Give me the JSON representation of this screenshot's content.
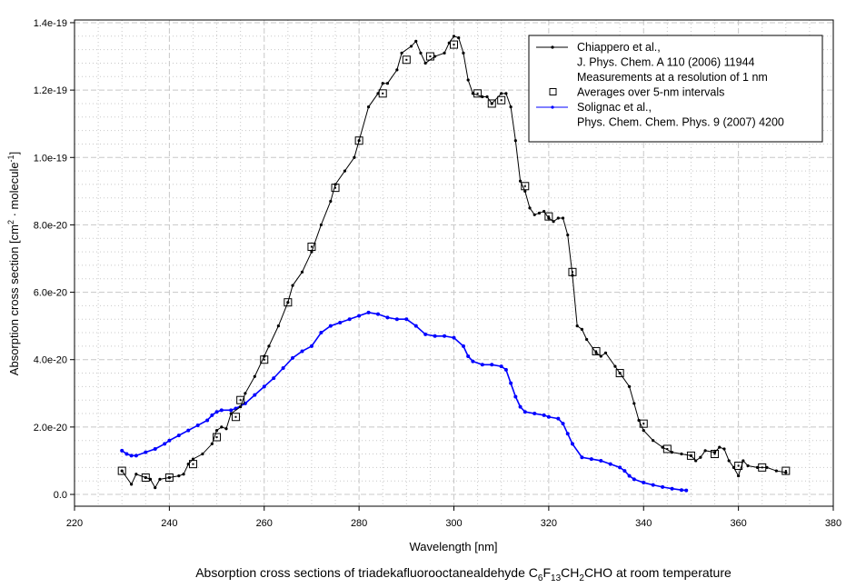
{
  "chart_data": {
    "type": "line",
    "xlabel": "Wavelength [nm]",
    "ylabel_main": "Absorption cross section [cm",
    "ylabel_sup1": "2",
    "ylabel_mid": " · molecule",
    "ylabel_sup2": "-1",
    "ylabel_end": "]",
    "caption": {
      "pre": "Absorption cross sections of triadekafluorooctanealdehyde C",
      "s1": "6",
      "f": "F",
      "s2": "13",
      "ch": "CH",
      "s3": "2",
      "post": "CHO at room temperature"
    },
    "y_unit_scale": 1e-20,
    "xlim": [
      220,
      380
    ],
    "ylim": [
      -0.35,
      14.08
    ],
    "grid": true,
    "legend_placement": "top-right",
    "x_ticks": [
      {
        "v": 220,
        "label": "220"
      },
      {
        "v": 240,
        "label": "240"
      },
      {
        "v": 260,
        "label": "260"
      },
      {
        "v": 280,
        "label": "280"
      },
      {
        "v": 300,
        "label": "300"
      },
      {
        "v": 320,
        "label": "320"
      },
      {
        "v": 340,
        "label": "340"
      },
      {
        "v": 360,
        "label": "360"
      },
      {
        "v": 380,
        "label": "380"
      }
    ],
    "y_ticks": [
      {
        "v": 0,
        "label": "0.0"
      },
      {
        "v": 2,
        "label": "2.0e-20"
      },
      {
        "v": 4,
        "label": "4.0e-20"
      },
      {
        "v": 6,
        "label": "6.0e-20"
      },
      {
        "v": 8,
        "label": "8.0e-20"
      },
      {
        "v": 10,
        "label": "1.0e-19"
      },
      {
        "v": 12,
        "label": "1.2e-19"
      },
      {
        "v": 14,
        "label": "1.4e-19"
      }
    ],
    "legend": [
      {
        "lines": [
          "Chiappero et al.,",
          "J. Phys. Chem. A 110 (2006) 11944",
          "Measurements at a resolution of 1 nm"
        ]
      },
      {
        "lines": [
          "Averages over 5-nm intervals"
        ]
      },
      {
        "lines": [
          "Solignac et al.,",
          "Phys. Chem. Chem. Phys. 9 (2007) 4200"
        ]
      }
    ],
    "series": [
      {
        "name": "Chiappero et al. (1 nm)",
        "color": "#000000",
        "x": [
          230,
          232,
          233,
          235,
          236,
          237,
          238,
          240,
          242,
          243,
          244,
          245,
          247,
          249,
          250,
          251,
          252,
          253,
          255,
          256,
          258,
          260,
          261,
          263,
          265,
          266,
          268,
          270,
          272,
          274,
          275,
          277,
          279,
          280,
          282,
          284,
          285,
          286,
          288,
          289,
          291,
          292,
          293,
          294,
          296,
          298,
          299,
          300,
          301,
          302,
          303,
          304,
          306,
          307,
          308,
          310,
          311,
          312,
          313,
          314,
          315,
          316,
          317,
          318,
          319,
          320,
          321,
          322,
          323,
          324,
          325,
          326,
          327,
          328,
          330,
          331,
          332,
          334,
          335,
          337,
          338,
          339,
          340,
          342,
          344,
          346,
          348,
          350,
          351,
          352,
          353,
          355,
          356,
          357,
          358,
          359,
          360,
          361,
          362,
          364,
          366,
          368,
          370
        ],
        "y": [
          0.7,
          0.3,
          0.6,
          0.5,
          0.45,
          0.2,
          0.45,
          0.5,
          0.55,
          0.6,
          0.9,
          1.05,
          1.2,
          1.5,
          1.9,
          2.0,
          1.95,
          2.4,
          2.6,
          3.0,
          3.5,
          4.1,
          4.4,
          5.0,
          5.7,
          6.2,
          6.6,
          7.2,
          8.0,
          8.7,
          9.2,
          9.6,
          10.0,
          10.5,
          11.5,
          11.9,
          12.2,
          12.2,
          12.6,
          13.1,
          13.3,
          13.45,
          13.1,
          12.8,
          13.0,
          13.1,
          13.4,
          13.6,
          13.55,
          13.1,
          12.3,
          11.9,
          11.8,
          11.8,
          11.6,
          11.9,
          11.9,
          11.5,
          10.5,
          9.3,
          9.0,
          8.5,
          8.3,
          8.35,
          8.4,
          8.2,
          8.1,
          8.2,
          8.2,
          7.7,
          6.5,
          5.0,
          4.9,
          4.6,
          4.2,
          4.1,
          4.2,
          3.8,
          3.6,
          3.2,
          2.7,
          2.2,
          1.9,
          1.6,
          1.4,
          1.25,
          1.2,
          1.15,
          1.0,
          1.1,
          1.3,
          1.25,
          1.4,
          1.35,
          1.0,
          0.8,
          0.55,
          1.0,
          0.85,
          0.8,
          0.8,
          0.7,
          0.65
        ]
      },
      {
        "name": "Averages over 5-nm intervals",
        "color": "#000000",
        "marker": "square",
        "x": [
          230,
          235,
          240,
          245,
          250,
          254,
          255,
          260,
          265,
          270,
          275,
          280,
          285,
          290,
          295,
          300,
          305,
          308,
          310,
          315,
          320,
          325,
          330,
          335,
          340,
          345,
          350,
          355,
          360,
          365,
          370
        ],
        "y": [
          0.7,
          0.5,
          0.5,
          0.9,
          1.7,
          2.3,
          2.8,
          4.0,
          5.7,
          7.35,
          9.1,
          10.5,
          11.9,
          12.9,
          13.0,
          13.35,
          11.9,
          11.6,
          11.7,
          9.15,
          8.25,
          6.6,
          4.25,
          3.6,
          2.1,
          1.35,
          1.15,
          1.2,
          0.85,
          0.8,
          0.7
        ]
      },
      {
        "name": "Solignac et al.",
        "color": "#0000ff",
        "x": [
          230,
          231,
          232,
          233,
          235,
          237,
          239,
          240,
          242,
          244,
          246,
          248,
          249,
          250,
          251,
          253,
          254,
          256,
          258,
          260,
          262,
          264,
          266,
          268,
          270,
          272,
          274,
          276,
          278,
          280,
          282,
          284,
          286,
          288,
          290,
          292,
          294,
          296,
          298,
          300,
          302,
          303,
          304,
          306,
          308,
          310,
          311,
          312,
          313,
          314,
          315,
          317,
          319,
          320,
          322,
          323,
          324,
          325,
          327,
          329,
          331,
          333,
          335,
          336,
          337,
          338,
          340,
          342,
          344,
          346,
          348,
          349
        ],
        "y": [
          1.3,
          1.2,
          1.15,
          1.15,
          1.25,
          1.35,
          1.5,
          1.6,
          1.75,
          1.9,
          2.05,
          2.2,
          2.35,
          2.45,
          2.5,
          2.5,
          2.55,
          2.7,
          2.95,
          3.2,
          3.45,
          3.75,
          4.05,
          4.25,
          4.4,
          4.8,
          5.0,
          5.1,
          5.2,
          5.3,
          5.4,
          5.35,
          5.25,
          5.2,
          5.2,
          5.0,
          4.75,
          4.7,
          4.7,
          4.65,
          4.4,
          4.1,
          3.95,
          3.85,
          3.85,
          3.8,
          3.7,
          3.3,
          2.9,
          2.6,
          2.45,
          2.4,
          2.35,
          2.3,
          2.25,
          2.1,
          1.8,
          1.5,
          1.1,
          1.05,
          1.0,
          0.9,
          0.8,
          0.7,
          0.55,
          0.45,
          0.35,
          0.28,
          0.22,
          0.17,
          0.13,
          0.12
        ]
      }
    ]
  }
}
